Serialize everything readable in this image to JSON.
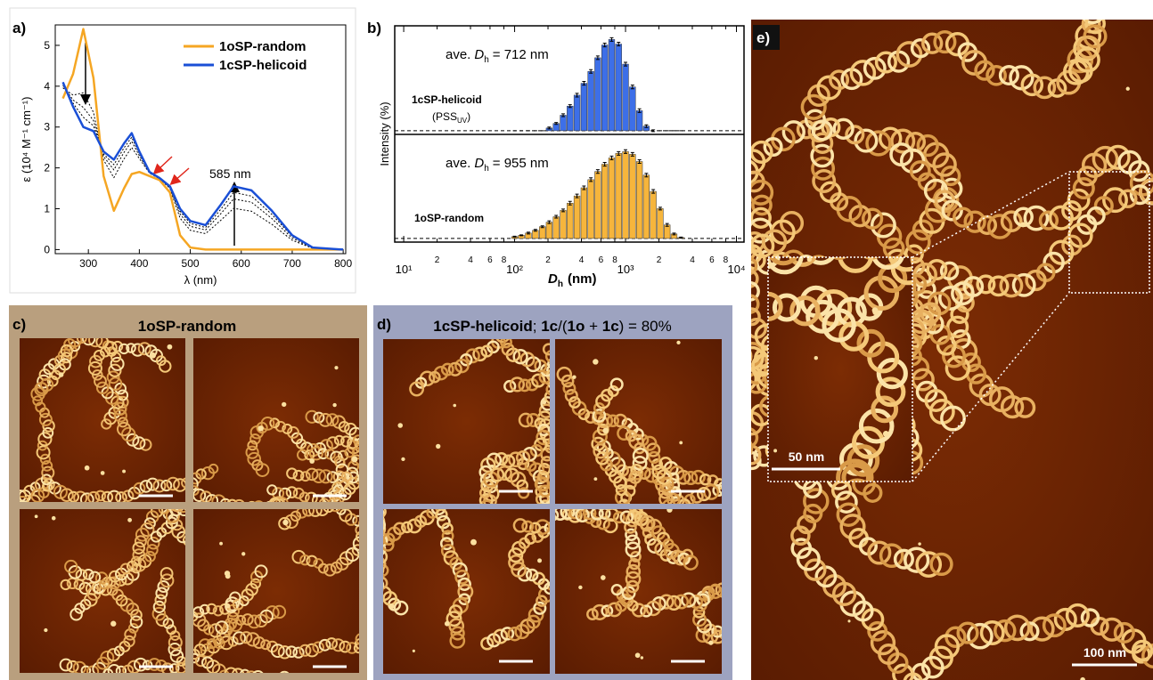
{
  "chart_data": [
    {
      "type": "line",
      "label": "a)",
      "x": [
        250,
        270,
        290,
        310,
        330,
        350,
        370,
        385,
        400,
        420,
        440,
        460,
        480,
        500,
        530,
        560,
        585,
        620,
        660,
        700,
        740,
        800
      ],
      "xlim": [
        235,
        805
      ],
      "xticks": [
        300,
        400,
        500,
        600,
        700,
        800
      ],
      "ylim": [
        -0.1,
        5.5
      ],
      "yticks": [
        0,
        1,
        2,
        3,
        4,
        5
      ],
      "xlabel": "λ (nm)",
      "ylabel": "ε (10⁴ M⁻¹ cm⁻¹)",
      "annotations": [
        "585 nm"
      ],
      "series": [
        {
          "name": "1oSP-random",
          "color": "#f5a623",
          "values": [
            3.7,
            4.3,
            5.4,
            4.2,
            1.8,
            0.95,
            1.5,
            1.85,
            1.9,
            1.8,
            1.7,
            1.4,
            0.35,
            0.05,
            0,
            0,
            0,
            0,
            0,
            0,
            0,
            0
          ]
        },
        {
          "name": "1cSP-helicoid",
          "color": "#1a4fd6",
          "values": [
            4.1,
            3.5,
            3.0,
            2.9,
            2.4,
            2.2,
            2.6,
            2.85,
            2.4,
            1.9,
            1.75,
            1.55,
            1.0,
            0.7,
            0.6,
            1.1,
            1.55,
            1.45,
            0.95,
            0.35,
            0.05,
            0
          ]
        },
        {
          "color": "#000000",
          "dash": true,
          "values": [
            3.96,
            3.78,
            3.84,
            3.36,
            2.19,
            1.76,
            2.22,
            2.5,
            2.23,
            1.87,
            1.73,
            1.5,
            0.77,
            0.47,
            0.39,
            0.72,
            1.01,
            0.94,
            0.62,
            0.23,
            0.03,
            0
          ]
        },
        {
          "color": "#000000",
          "dash": true,
          "values": [
            4.02,
            3.66,
            3.48,
            3.16,
            2.28,
            1.95,
            2.38,
            2.65,
            2.3,
            1.88,
            1.74,
            1.52,
            0.87,
            0.57,
            0.48,
            0.88,
            1.24,
            1.16,
            0.76,
            0.28,
            0.04,
            0
          ]
        },
        {
          "color": "#000000",
          "dash": true,
          "values": [
            4.06,
            3.58,
            3.24,
            3.03,
            2.34,
            2.08,
            2.49,
            2.75,
            2.35,
            1.89,
            1.75,
            1.54,
            0.94,
            0.64,
            0.54,
            0.99,
            1.4,
            1.31,
            0.86,
            0.32,
            0.05,
            0
          ]
        }
      ]
    },
    {
      "type": "bar",
      "label": "b)",
      "xscale": "log",
      "x": [
        100,
        115,
        133,
        154,
        178,
        205,
        237,
        274,
        316,
        365,
        422,
        487,
        562,
        649,
        750,
        866,
        1000,
        1155,
        1334,
        1540,
        1778,
        2054,
        2371,
        2738,
        3162
      ],
      "xlim": [
        8.3,
        11700
      ],
      "xticks": [
        {
          "value": 10,
          "label": "10¹"
        },
        {
          "value": 20,
          "label": "2"
        },
        {
          "value": 40,
          "label": "4"
        },
        {
          "value": 60,
          "label": "6"
        },
        {
          "value": 80,
          "label": "8"
        },
        {
          "value": 100,
          "label": "10²"
        },
        {
          "value": 200,
          "label": "2"
        },
        {
          "value": 400,
          "label": "4"
        },
        {
          "value": 600,
          "label": "6"
        },
        {
          "value": 800,
          "label": "8"
        },
        {
          "value": 1000,
          "label": "10³"
        },
        {
          "value": 2000,
          "label": "2"
        },
        {
          "value": 4000,
          "label": "4"
        },
        {
          "value": 6000,
          "label": "6"
        },
        {
          "value": 8000,
          "label": "8"
        },
        {
          "value": 10000,
          "label": "10⁴"
        }
      ],
      "ylim": [
        -0.4,
        11.5
      ],
      "xlabel": [
        "D",
        "h",
        "(nm)"
      ],
      "ylabel": "Intensity (%)",
      "series": [
        {
          "name": "1cSP-helicoid",
          "note": [
            "(PSS",
            "UV",
            ")"
          ],
          "annotation": [
            "ave.",
            "D",
            "h",
            "= 712 nm"
          ],
          "color": "#3d6fe8",
          "values": [
            0,
            0,
            0,
            0,
            0,
            0.3,
            0.8,
            1.7,
            2.7,
            3.9,
            5.2,
            6.5,
            8.0,
            9.4,
            10,
            9.5,
            7.3,
            4.8,
            2.2,
            0.5,
            0,
            0,
            0,
            0,
            0
          ],
          "errors": [
            0,
            0,
            0,
            0,
            0,
            0.1,
            0.1,
            0.15,
            0.15,
            0.2,
            0.2,
            0.2,
            0.2,
            0.2,
            0.2,
            0.2,
            0.2,
            0.2,
            0.2,
            0.15,
            0.1,
            0,
            0,
            0,
            0
          ]
        },
        {
          "name": "1oSP-random",
          "annotation": [
            "ave.",
            "D",
            "h",
            "= 955 nm"
          ],
          "color": "#f6b53c",
          "values": [
            0.2,
            0.35,
            0.6,
            0.9,
            1.3,
            1.8,
            2.4,
            3.1,
            3.9,
            4.7,
            5.6,
            6.5,
            7.4,
            8.2,
            8.9,
            9.4,
            9.6,
            9.3,
            8.5,
            7.0,
            5.2,
            3.3,
            1.5,
            0.5,
            0.1
          ],
          "errors": [
            0.05,
            0.05,
            0.1,
            0.1,
            0.1,
            0.15,
            0.15,
            0.15,
            0.2,
            0.2,
            0.2,
            0.2,
            0.2,
            0.2,
            0.2,
            0.2,
            0.2,
            0.2,
            0.2,
            0.2,
            0.2,
            0.15,
            0.15,
            0.1,
            0.05
          ]
        }
      ]
    }
  ],
  "panels": [
    {
      "label": "c)",
      "title": [
        "1oSP-random"
      ]
    },
    {
      "label": "d)",
      "title": [
        "1cSP-helicoid",
        "; ",
        "1c",
        "/(",
        "1o",
        " + ",
        "1c",
        ") = 80%"
      ]
    },
    {
      "label": "e)",
      "scale_bars": [
        "50 nm",
        "100 nm"
      ]
    }
  ]
}
